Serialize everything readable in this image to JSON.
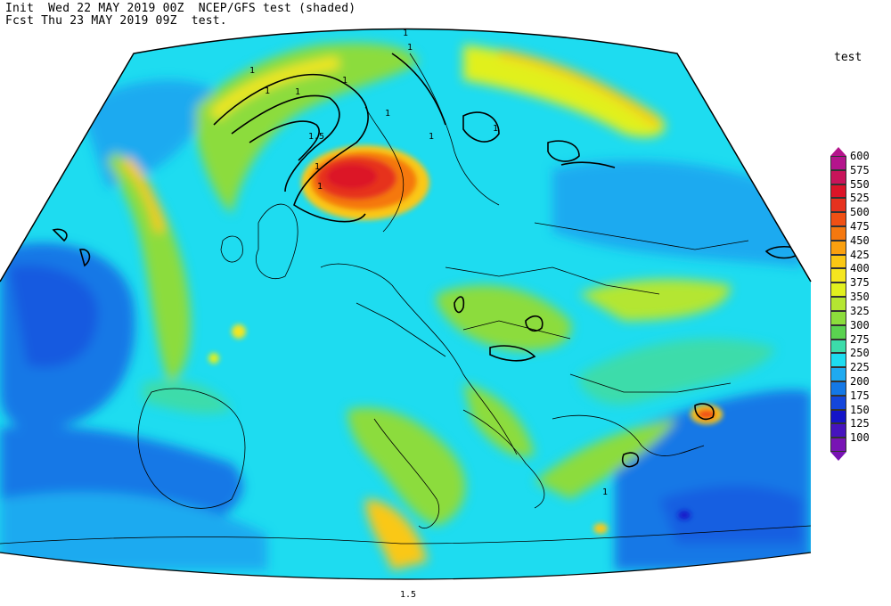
{
  "header": {
    "init_line": "Init  Wed 22 MAY 2019 00Z  NCEP/GFS test (shaded)",
    "fcst_line": "Fcst Thu 23 MAY 2019 09Z  test."
  },
  "legend": {
    "title": "test",
    "levels": [
      {
        "label": "600",
        "color": "#b4148c"
      },
      {
        "label": "575",
        "color": "#c8145a"
      },
      {
        "label": "550",
        "color": "#dc1428"
      },
      {
        "label": "525",
        "color": "#e6321e"
      },
      {
        "label": "500",
        "color": "#f05014"
      },
      {
        "label": "475",
        "color": "#f5780f"
      },
      {
        "label": "450",
        "color": "#faa00f"
      },
      {
        "label": "425",
        "color": "#fac814"
      },
      {
        "label": "400",
        "color": "#f5e61e"
      },
      {
        "label": "375",
        "color": "#e1f01e"
      },
      {
        "label": "350",
        "color": "#b4e632"
      },
      {
        "label": "325",
        "color": "#8cdc3c"
      },
      {
        "label": "300",
        "color": "#5ad250"
      },
      {
        "label": "275",
        "color": "#3cdcaa"
      },
      {
        "label": "250",
        "color": "#1edcf0"
      },
      {
        "label": "225",
        "color": "#1eaaf0"
      },
      {
        "label": "200",
        "color": "#1478e6"
      },
      {
        "label": "175",
        "color": "#1446dc"
      },
      {
        "label": "150",
        "color": "#1414c8"
      },
      {
        "label": "125",
        "color": "#4614be"
      },
      {
        "label": "100",
        "color": "#7814b4"
      }
    ]
  },
  "map": {
    "contour_labels": [
      "1",
      "1",
      "1",
      "1",
      "1",
      "1",
      "1",
      "1.5",
      "1",
      "1",
      "1",
      "1",
      "1",
      "1.5"
    ]
  }
}
